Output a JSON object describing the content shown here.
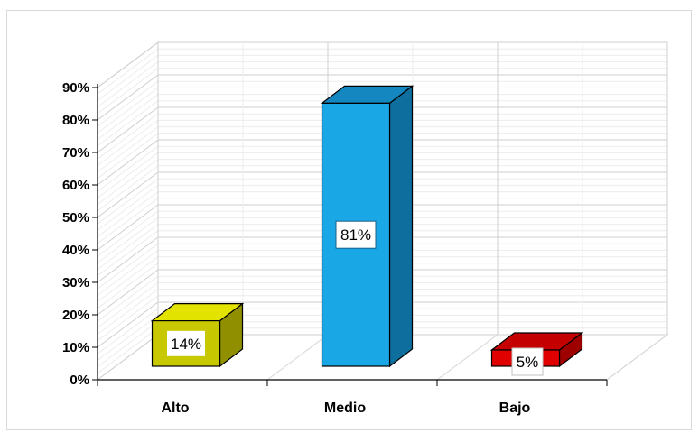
{
  "chart_data": {
    "type": "bar",
    "style": "3d",
    "categories": [
      "Alto",
      "Medio",
      "Bajo"
    ],
    "values": [
      14,
      81,
      5
    ],
    "data_labels": [
      "14%",
      "81%",
      "5%"
    ],
    "colors": [
      "#c8c800",
      "#1aa7e6",
      "#e00000"
    ],
    "side_colors": [
      "#8f8f00",
      "#0e6f9e",
      "#9e0000"
    ],
    "top_colors": [
      "#e3e300",
      "#1486c0",
      "#c40000"
    ],
    "label_box_borders": [
      "#c8c800",
      "#1a5f8a",
      "#c0c0c0"
    ],
    "ylim": [
      0,
      90
    ],
    "yticks": [
      "0%",
      "10%",
      "20%",
      "30%",
      "40%",
      "50%",
      "60%",
      "70%",
      "80%",
      "90%"
    ],
    "grid": true,
    "title": "",
    "xlabel": "",
    "ylabel": "",
    "legend": "none"
  }
}
